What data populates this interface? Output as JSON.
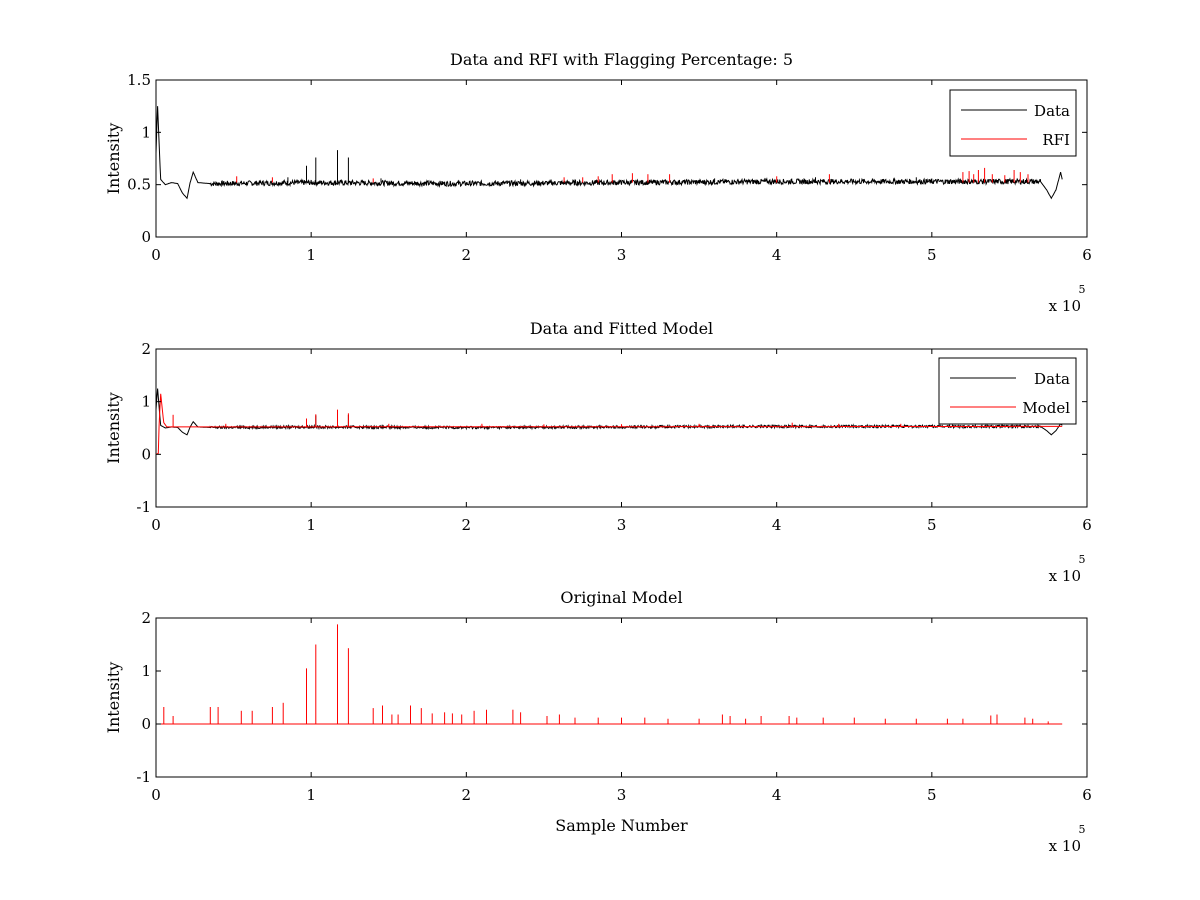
{
  "figure": {
    "background": "#ffffff"
  },
  "colors": {
    "data": "#000000",
    "rfi": "#ff0000",
    "model": "#ff0000"
  },
  "chart_data": [
    {
      "type": "line",
      "title": "Data and RFI with Flagging Percentage: 5",
      "xlabel": "",
      "ylabel": "Intensity",
      "xlim": [
        0,
        6
      ],
      "ylim": [
        0,
        1.5
      ],
      "x_ticks": [
        "0",
        "1",
        "2",
        "3",
        "4",
        "5",
        "6"
      ],
      "y_ticks": [
        "0",
        "0.5",
        "1",
        "1.5"
      ],
      "x_multiplier": "x 10",
      "x_multiplier_exponent": "5",
      "legend": {
        "placement": "top-right",
        "entries": [
          "Data",
          "RFI"
        ]
      },
      "grid": false,
      "series": [
        {
          "name": "Data",
          "color": "#000000",
          "baseline": 0.52,
          "points": [
            [
              0.0,
              0.8
            ],
            [
              0.01,
              1.25
            ],
            [
              0.03,
              0.55
            ],
            [
              0.06,
              0.5
            ],
            [
              0.1,
              0.52
            ],
            [
              0.14,
              0.51
            ],
            [
              0.17,
              0.42
            ],
            [
              0.2,
              0.37
            ],
            [
              0.22,
              0.52
            ],
            [
              0.24,
              0.62
            ],
            [
              0.27,
              0.52
            ],
            [
              0.35,
              0.51
            ],
            [
              1.0,
              0.52
            ],
            [
              2.0,
              0.51
            ],
            [
              3.0,
              0.52
            ],
            [
              4.0,
              0.53
            ],
            [
              5.0,
              0.53
            ],
            [
              5.7,
              0.53
            ],
            [
              5.74,
              0.45
            ],
            [
              5.77,
              0.37
            ],
            [
              5.8,
              0.45
            ],
            [
              5.83,
              0.62
            ],
            [
              5.84,
              0.55
            ]
          ],
          "spikes": [
            [
              0.97,
              0.68
            ],
            [
              1.03,
              0.76
            ],
            [
              1.17,
              0.83
            ],
            [
              1.24,
              0.76
            ],
            [
              0.85,
              0.57
            ],
            [
              1.45,
              0.56
            ],
            [
              2.35,
              0.55
            ],
            [
              3.6,
              0.56
            ],
            [
              4.25,
              0.57
            ],
            [
              4.9,
              0.57
            ]
          ]
        },
        {
          "name": "RFI",
          "color": "#ff0000",
          "baseline": 0.52,
          "spikes": [
            [
              0.52,
              0.58
            ],
            [
              0.75,
              0.57
            ],
            [
              1.4,
              0.56
            ],
            [
              2.63,
              0.57
            ],
            [
              2.75,
              0.57
            ],
            [
              2.85,
              0.58
            ],
            [
              2.94,
              0.6
            ],
            [
              3.07,
              0.61
            ],
            [
              3.17,
              0.6
            ],
            [
              3.31,
              0.6
            ],
            [
              4.0,
              0.58
            ],
            [
              4.34,
              0.6
            ],
            [
              5.2,
              0.62
            ],
            [
              5.24,
              0.63
            ],
            [
              5.27,
              0.6
            ],
            [
              5.3,
              0.64
            ],
            [
              5.34,
              0.66
            ],
            [
              5.39,
              0.6
            ],
            [
              5.47,
              0.59
            ],
            [
              5.53,
              0.64
            ],
            [
              5.57,
              0.62
            ],
            [
              5.62,
              0.6
            ]
          ]
        }
      ]
    },
    {
      "type": "line",
      "title": "Data and Fitted Model",
      "xlabel": "",
      "ylabel": "Intensity",
      "xlim": [
        0,
        6
      ],
      "ylim": [
        -1,
        2
      ],
      "x_ticks": [
        "0",
        "1",
        "2",
        "3",
        "4",
        "5",
        "6"
      ],
      "y_ticks": [
        "-1",
        "0",
        "1",
        "2"
      ],
      "x_multiplier": "x 10",
      "x_multiplier_exponent": "5",
      "legend": {
        "placement": "top-right",
        "entries": [
          "Data",
          "Model"
        ]
      },
      "grid": false,
      "series": [
        {
          "name": "Data",
          "color": "#000000",
          "baseline": 0.52,
          "points": [
            [
              0.0,
              0.85
            ],
            [
              0.01,
              1.25
            ],
            [
              0.03,
              0.55
            ],
            [
              0.06,
              0.5
            ],
            [
              0.1,
              0.52
            ],
            [
              0.14,
              0.51
            ],
            [
              0.17,
              0.42
            ],
            [
              0.2,
              0.37
            ],
            [
              0.22,
              0.52
            ],
            [
              0.24,
              0.62
            ],
            [
              0.27,
              0.52
            ],
            [
              0.35,
              0.51
            ],
            [
              1.0,
              0.52
            ],
            [
              2.0,
              0.51
            ],
            [
              3.0,
              0.52
            ],
            [
              4.0,
              0.53
            ],
            [
              5.0,
              0.53
            ],
            [
              5.7,
              0.53
            ],
            [
              5.74,
              0.45
            ],
            [
              5.77,
              0.37
            ],
            [
              5.8,
              0.45
            ],
            [
              5.83,
              0.58
            ],
            [
              5.84,
              0.55
            ]
          ],
          "spikes": [
            [
              0.97,
              0.66
            ],
            [
              1.03,
              0.74
            ],
            [
              1.17,
              0.82
            ],
            [
              1.24,
              0.75
            ]
          ]
        },
        {
          "name": "Model",
          "color": "#ff0000",
          "baseline": 0.52,
          "points": [
            [
              0.0,
              0.0
            ],
            [
              0.015,
              0.02
            ],
            [
              0.02,
              0.55
            ],
            [
              0.03,
              1.15
            ],
            [
              0.05,
              0.6
            ],
            [
              0.07,
              0.52
            ],
            [
              0.1,
              0.52
            ],
            [
              5.84,
              0.53
            ]
          ],
          "spikes": [
            [
              0.11,
              0.75
            ],
            [
              0.45,
              0.58
            ],
            [
              0.97,
              0.68
            ],
            [
              1.03,
              0.76
            ],
            [
              1.17,
              0.85
            ],
            [
              1.24,
              0.78
            ],
            [
              1.5,
              0.58
            ],
            [
              2.1,
              0.58
            ],
            [
              2.5,
              0.57
            ],
            [
              3.0,
              0.57
            ],
            [
              3.5,
              0.58
            ],
            [
              4.1,
              0.6
            ],
            [
              4.4,
              0.58
            ],
            [
              4.8,
              0.58
            ]
          ]
        }
      ]
    },
    {
      "type": "line",
      "title": "Original Model",
      "xlabel": "Sample Number",
      "ylabel": "Intensity",
      "xlim": [
        0,
        6
      ],
      "ylim": [
        -1,
        2
      ],
      "x_ticks": [
        "0",
        "1",
        "2",
        "3",
        "4",
        "5",
        "6"
      ],
      "y_ticks": [
        "-1",
        "0",
        "1",
        "2"
      ],
      "x_multiplier": "x 10",
      "x_multiplier_exponent": "5",
      "legend": null,
      "grid": false,
      "series": [
        {
          "name": "",
          "color": "#ff0000",
          "baseline": 0.0,
          "points": [
            [
              0.02,
              0.0
            ],
            [
              5.84,
              0.0
            ]
          ],
          "spikes": [
            [
              0.05,
              0.32
            ],
            [
              0.11,
              0.15
            ],
            [
              0.35,
              0.32
            ],
            [
              0.4,
              0.32
            ],
            [
              0.55,
              0.25
            ],
            [
              0.62,
              0.25
            ],
            [
              0.75,
              0.32
            ],
            [
              0.82,
              0.4
            ],
            [
              0.97,
              1.05
            ],
            [
              1.03,
              1.5
            ],
            [
              1.17,
              1.88
            ],
            [
              1.24,
              1.43
            ],
            [
              1.4,
              0.3
            ],
            [
              1.46,
              0.35
            ],
            [
              1.52,
              0.18
            ],
            [
              1.56,
              0.18
            ],
            [
              1.64,
              0.35
            ],
            [
              1.71,
              0.3
            ],
            [
              1.78,
              0.2
            ],
            [
              1.86,
              0.22
            ],
            [
              1.91,
              0.2
            ],
            [
              1.97,
              0.18
            ],
            [
              2.05,
              0.25
            ],
            [
              2.13,
              0.27
            ],
            [
              2.3,
              0.27
            ],
            [
              2.35,
              0.22
            ],
            [
              2.52,
              0.15
            ],
            [
              2.6,
              0.18
            ],
            [
              2.7,
              0.12
            ],
            [
              2.85,
              0.12
            ],
            [
              3.0,
              0.12
            ],
            [
              3.15,
              0.12
            ],
            [
              3.3,
              0.1
            ],
            [
              3.5,
              0.1
            ],
            [
              3.65,
              0.18
            ],
            [
              3.7,
              0.15
            ],
            [
              3.8,
              0.1
            ],
            [
              3.9,
              0.15
            ],
            [
              4.08,
              0.15
            ],
            [
              4.13,
              0.12
            ],
            [
              4.3,
              0.12
            ],
            [
              4.5,
              0.12
            ],
            [
              4.7,
              0.1
            ],
            [
              4.9,
              0.1
            ],
            [
              5.1,
              0.1
            ],
            [
              5.2,
              0.1
            ],
            [
              5.38,
              0.16
            ],
            [
              5.42,
              0.18
            ],
            [
              5.6,
              0.12
            ],
            [
              5.65,
              0.1
            ],
            [
              5.75,
              0.05
            ]
          ]
        }
      ]
    }
  ]
}
